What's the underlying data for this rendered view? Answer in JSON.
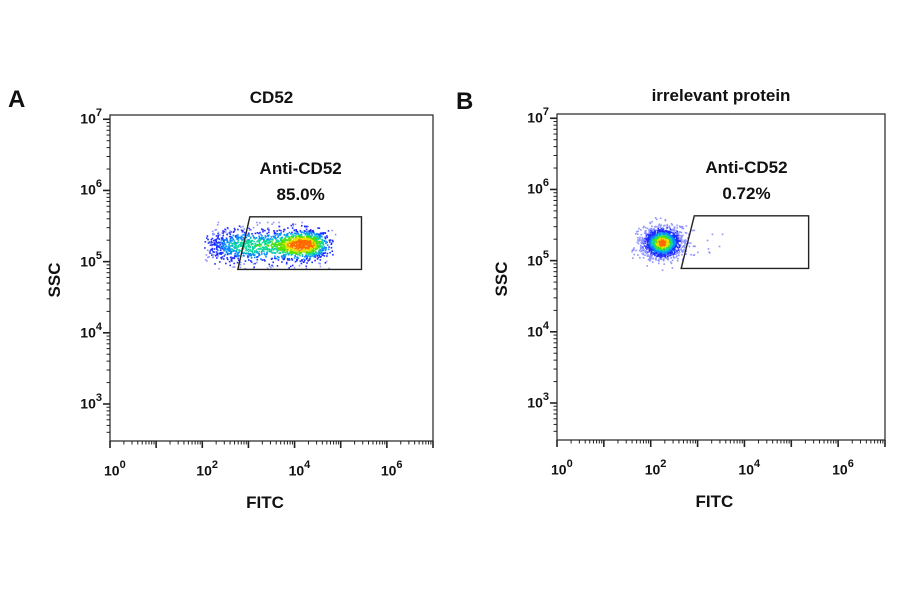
{
  "chart_data": [
    {
      "type": "scatter",
      "panel_label": "A",
      "title": "CD52",
      "xlabel": "FITC",
      "ylabel": "SSC",
      "x_scale": "log",
      "y_scale": "log",
      "xlim_log10": [
        0,
        7
      ],
      "ylim_log10": [
        2.48,
        7.06
      ],
      "x_ticks": [
        {
          "base": "10",
          "exp": "0",
          "v": 0
        },
        {
          "base": "10",
          "exp": "2",
          "v": 2
        },
        {
          "base": "10",
          "exp": "4",
          "v": 4
        },
        {
          "base": "10",
          "exp": "6",
          "v": 6
        }
      ],
      "y_ticks": [
        {
          "base": "10",
          "exp": "3",
          "v": 3
        },
        {
          "base": "10",
          "exp": "4",
          "v": 4
        },
        {
          "base": "10",
          "exp": "5",
          "v": 5
        },
        {
          "base": "10",
          "exp": "6",
          "v": 6
        },
        {
          "base": "10",
          "exp": "7",
          "v": 7
        }
      ],
      "gate": {
        "name": "Anti-CD52",
        "percent": "85.0%",
        "vertices_log10": [
          [
            2.77,
            4.89
          ],
          [
            3.03,
            5.63
          ],
          [
            5.45,
            5.63
          ],
          [
            5.45,
            4.89
          ]
        ]
      },
      "population": {
        "events": 1800,
        "x_range_log10": [
          2.0,
          4.85
        ],
        "y_center_log10": 5.22,
        "hotspot_log10": [
          4.2,
          5.25
        ]
      }
    },
    {
      "type": "scatter",
      "panel_label": "B",
      "title": "irrelevant protein",
      "xlabel": "FITC",
      "ylabel": "SSC",
      "x_scale": "log",
      "y_scale": "log",
      "xlim_log10": [
        0,
        7
      ],
      "ylim_log10": [
        2.48,
        7.06
      ],
      "x_ticks": [
        {
          "base": "10",
          "exp": "0",
          "v": 0
        },
        {
          "base": "10",
          "exp": "2",
          "v": 2
        },
        {
          "base": "10",
          "exp": "4",
          "v": 4
        },
        {
          "base": "10",
          "exp": "6",
          "v": 6
        }
      ],
      "y_ticks": [
        {
          "base": "10",
          "exp": "3",
          "v": 3
        },
        {
          "base": "10",
          "exp": "4",
          "v": 4
        },
        {
          "base": "10",
          "exp": "5",
          "v": 5
        },
        {
          "base": "10",
          "exp": "6",
          "v": 6
        },
        {
          "base": "10",
          "exp": "7",
          "v": 7
        }
      ],
      "gate": {
        "name": "Anti-CD52",
        "percent": "0.72%",
        "vertices_log10": [
          [
            2.65,
            4.89
          ],
          [
            2.93,
            5.63
          ],
          [
            5.37,
            5.63
          ],
          [
            5.37,
            4.89
          ]
        ]
      },
      "population": {
        "events": 1500,
        "center_log10": [
          2.25,
          5.25
        ],
        "sd_log10": [
          0.22,
          0.11
        ]
      }
    }
  ],
  "colors": {
    "low": "#1f2bff",
    "mid_low": "#0a8cff",
    "mid": "#12d6a0",
    "mid_high": "#55e000",
    "high": "#e8e000",
    "peak": "#ff6a00",
    "sparse": "#8f94ff"
  }
}
